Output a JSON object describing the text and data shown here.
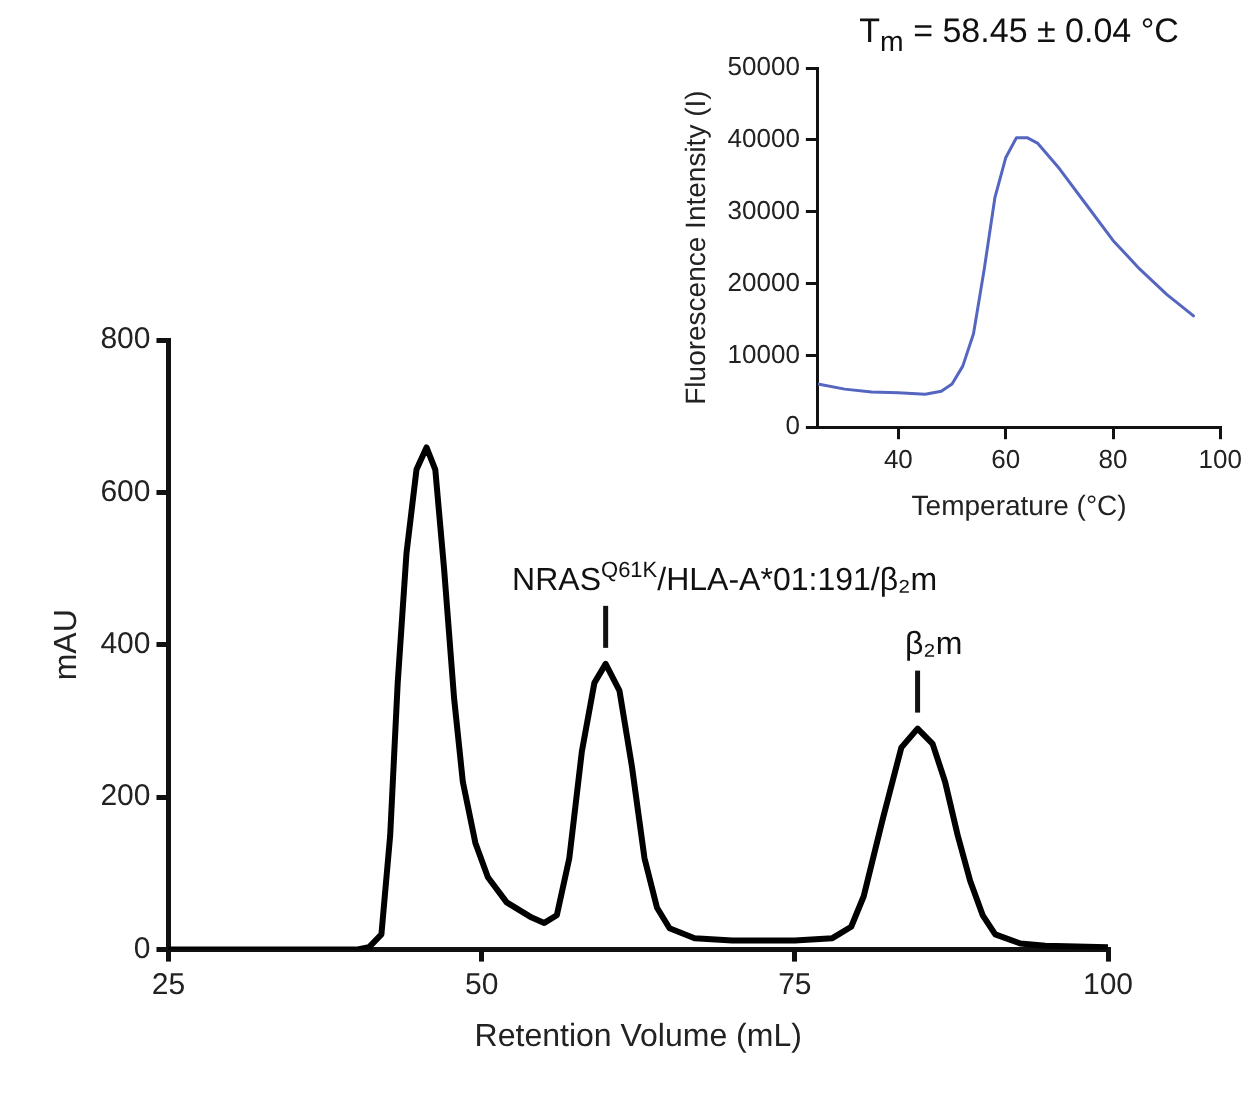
{
  "chart_data": [
    {
      "type": "line",
      "xlabel": "Retention Volume (mL)",
      "ylabel": "mAU",
      "xlim": [
        25,
        100
      ],
      "xticks": [
        25,
        50,
        75,
        100
      ],
      "ylim": [
        0,
        800
      ],
      "yticks": [
        0,
        200,
        400,
        600,
        800
      ],
      "grid": false,
      "legend": false,
      "marker": "none",
      "line_style": "solid",
      "series": [
        {
          "color": "#000000",
          "x": [
            25,
            40,
            41,
            42,
            42.7,
            43.3,
            44,
            44.8,
            45.6,
            46.3,
            47,
            47.8,
            48.5,
            49.5,
            50.5,
            52,
            54,
            55,
            56,
            57,
            58,
            59,
            59.9,
            61,
            62,
            63,
            64,
            65,
            67,
            70,
            75,
            78,
            79.5,
            80.5,
            82,
            83.5,
            84.8,
            86,
            87,
            88,
            89,
            90,
            91,
            93,
            95,
            100
          ],
          "values": [
            0,
            0,
            3,
            20,
            150,
            350,
            520,
            630,
            659,
            630,
            500,
            330,
            220,
            140,
            95,
            62,
            42,
            35,
            45,
            120,
            260,
            350,
            375,
            340,
            240,
            120,
            55,
            28,
            15,
            12,
            12,
            15,
            30,
            70,
            170,
            265,
            290,
            270,
            220,
            150,
            90,
            45,
            20,
            8,
            5,
            3
          ]
        }
      ],
      "annotations": [
        {
          "text": "NRAS$^{Q61K}$/HLA-A*01:191/β₂m",
          "x": 59.9,
          "y": 375
        },
        {
          "text": "β₂m",
          "x": 84.8,
          "y": 290
        }
      ]
    },
    {
      "type": "line",
      "title": "T$_{m}$ = 58.45 ± 0.04 °C",
      "xlabel": "Temperature (°C)",
      "ylabel": "Fluorescence Intensity (I)",
      "xlim": [
        25,
        100
      ],
      "xticks": [
        40,
        60,
        80,
        100
      ],
      "ylim": [
        0,
        50000
      ],
      "yticks": [
        0,
        10000,
        20000,
        30000,
        40000,
        50000
      ],
      "grid": false,
      "legend": false,
      "marker": "none",
      "line_style": "solid",
      "series": [
        {
          "color": "#5566c0",
          "x": [
            25,
            30,
            35,
            40,
            45,
            48,
            50,
            52,
            54,
            56,
            58,
            60,
            62,
            64,
            66,
            70,
            75,
            80,
            85,
            90,
            95
          ],
          "values": [
            6000,
            5300,
            4900,
            4800,
            4600,
            5000,
            6000,
            8500,
            13000,
            22000,
            32000,
            37500,
            40300,
            40300,
            39500,
            36000,
            31000,
            26000,
            22000,
            18500,
            15500
          ]
        }
      ]
    }
  ]
}
